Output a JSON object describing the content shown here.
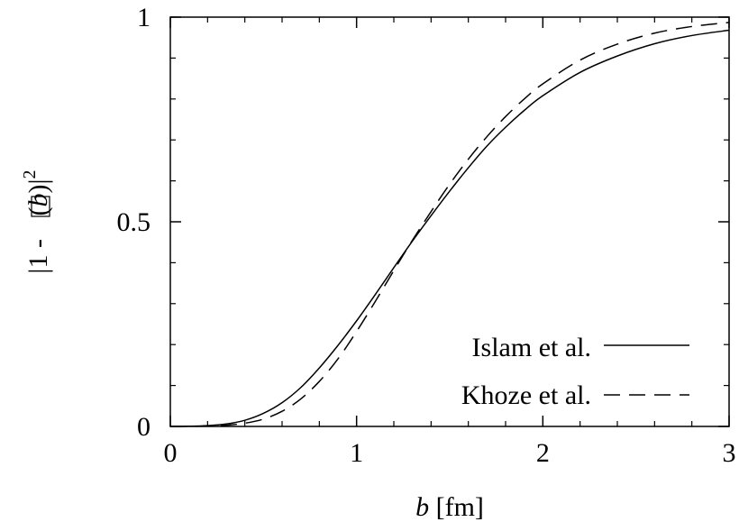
{
  "chart_data": {
    "type": "line",
    "title": "",
    "xlabel": {
      "var": "b",
      "unit": " [fm]"
    },
    "ylabel": {
      "part1": "|1 - ",
      "part2": "(",
      "var": "b",
      "part3": ")|",
      "sup": "2"
    },
    "xlim": [
      0,
      3
    ],
    "ylim": [
      0,
      1
    ],
    "x_ticks": [
      0,
      1,
      2,
      3
    ],
    "x_tick_labels": [
      "0",
      "1",
      "2",
      "3"
    ],
    "y_ticks": [
      0,
      0.5,
      1
    ],
    "y_tick_labels": [
      "0",
      "0.5",
      "1"
    ],
    "grid": false,
    "legend_position": "bottom-right",
    "series": [
      {
        "name": "Islam et al.",
        "style": "solid",
        "color": "#000000",
        "x": [
          0.0,
          0.1,
          0.2,
          0.3,
          0.4,
          0.5,
          0.6,
          0.7,
          0.8,
          0.9,
          1.0,
          1.1,
          1.2,
          1.3,
          1.4,
          1.5,
          1.6,
          1.7,
          1.8,
          1.9,
          2.0,
          2.2,
          2.4,
          2.6,
          2.8,
          3.0
        ],
        "y": [
          0.0,
          0.0005,
          0.002,
          0.006,
          0.015,
          0.032,
          0.058,
          0.095,
          0.143,
          0.198,
          0.258,
          0.322,
          0.388,
          0.453,
          0.515,
          0.575,
          0.632,
          0.685,
          0.731,
          0.772,
          0.808,
          0.865,
          0.905,
          0.935,
          0.955,
          0.968
        ]
      },
      {
        "name": "Khoze et al.",
        "style": "dashed",
        "color": "#000000",
        "x": [
          0.0,
          0.1,
          0.2,
          0.3,
          0.4,
          0.5,
          0.6,
          0.7,
          0.8,
          0.9,
          1.0,
          1.1,
          1.2,
          1.3,
          1.4,
          1.5,
          1.6,
          1.7,
          1.8,
          1.9,
          2.0,
          2.2,
          2.4,
          2.6,
          2.8,
          3.0
        ],
        "y": [
          0.0,
          0.0002,
          0.001,
          0.003,
          0.008,
          0.018,
          0.037,
          0.067,
          0.11,
          0.165,
          0.232,
          0.305,
          0.381,
          0.455,
          0.525,
          0.592,
          0.653,
          0.708,
          0.757,
          0.8,
          0.837,
          0.895,
          0.934,
          0.961,
          0.977,
          0.987
        ]
      }
    ]
  }
}
